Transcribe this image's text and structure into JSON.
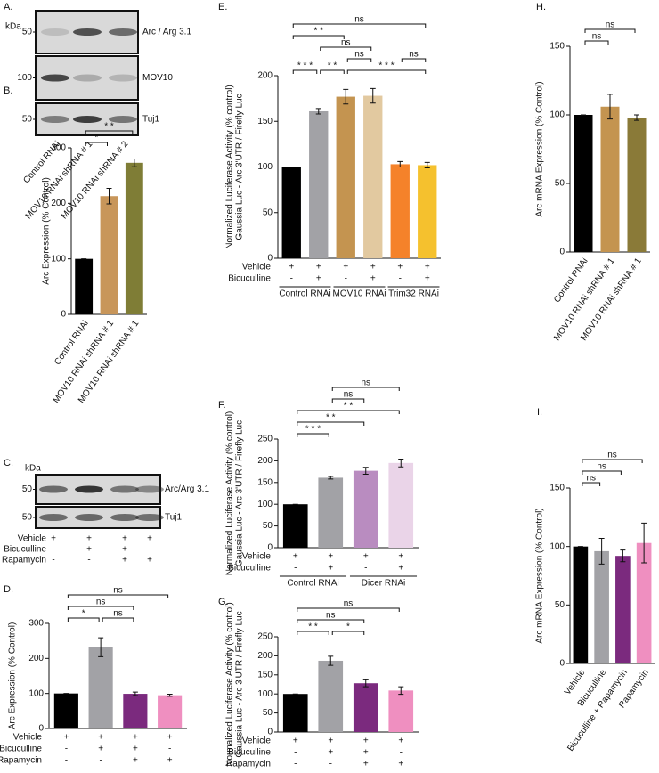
{
  "blots": [
    {
      "label": "A.",
      "unit": "kDa",
      "rows": [
        {
          "name": "Arc / Arg 3.1",
          "marker": 50
        },
        {
          "name": "MOV10",
          "marker": 100
        },
        {
          "name": "Tuj1",
          "marker": 50
        }
      ],
      "lanes": [
        "Control RNAi",
        "MOV10 RNAi shRNA # 1",
        "MOV10 RNAi shRNA # 2"
      ]
    },
    {
      "label": "C.",
      "unit": "kDa",
      "rows": [
        {
          "name": "Arc/Arg 3.1",
          "marker": 50
        },
        {
          "name": "Tuj1",
          "marker": 50
        }
      ],
      "treatments": [
        {
          "name": "Vehicle",
          "values": [
            "+",
            "+",
            "+",
            "+"
          ]
        },
        {
          "name": "Bicuculline",
          "values": [
            "-",
            "+",
            "+",
            "-"
          ]
        },
        {
          "name": "Rapamycin",
          "values": [
            "-",
            "-",
            "+",
            "+"
          ]
        }
      ]
    }
  ],
  "chart_data": [
    {
      "type": "bar",
      "label": "B.",
      "ylabel": "Arc Expression  (% Control)",
      "categories": [
        "Control RNAi",
        "MOV10 RNAi shRNA # 1",
        "MOV10 RNAi shRNA # 1"
      ],
      "values": [
        100,
        213,
        273
      ],
      "errors": [
        0,
        14,
        7
      ],
      "colors": [
        "#000000",
        "#c8965a",
        "#7f7d36"
      ],
      "ylim": [
        0,
        300
      ],
      "yticks": [
        0,
        100,
        200,
        300
      ],
      "comparisons": [
        {
          "groups": [
            0,
            2
          ],
          "label": "* *"
        },
        {
          "groups": [
            0,
            1
          ],
          "label": "*"
        }
      ]
    },
    {
      "type": "bar",
      "label": "D.",
      "ylabel": "Arc Expression (% Control)",
      "values": [
        100,
        232,
        99,
        95
      ],
      "errors": [
        0,
        27,
        5,
        3
      ],
      "colors": [
        "#000000",
        "#a2a2a6",
        "#7b2a7e",
        "#ef8fc0"
      ],
      "ylim": [
        0,
        300
      ],
      "yticks": [
        0,
        100,
        200,
        300
      ],
      "treatments": [
        {
          "name": "Vehicle",
          "values": [
            "+",
            "+",
            "+",
            "+"
          ]
        },
        {
          "name": "Bicuculline",
          "values": [
            "-",
            "+",
            "+",
            "-"
          ]
        },
        {
          "name": "Rapamycin",
          "values": [
            "-",
            "-",
            "+",
            "+"
          ]
        }
      ],
      "comparisons": [
        {
          "groups": [
            0,
            3
          ],
          "label": "ns"
        },
        {
          "groups": [
            0,
            2
          ],
          "label": "ns"
        },
        {
          "groups": [
            0,
            1
          ],
          "label": "*"
        },
        {
          "groups": [
            1,
            2
          ],
          "label": "ns"
        }
      ]
    },
    {
      "type": "bar",
      "label": "E.",
      "ylabel": [
        "Normalized Luciferase Activity (% control)",
        "Gaussia Luc - Arc 3'UTR / Firefly Luc"
      ],
      "values": [
        100,
        161,
        177,
        178,
        103,
        102
      ],
      "errors": [
        0,
        3,
        8,
        8,
        3,
        3
      ],
      "colors": [
        "#000000",
        "#a2a2a6",
        "#c49450",
        "#e2c9a0",
        "#f5822a",
        "#f5c12e"
      ],
      "ylim": [
        0,
        200
      ],
      "yticks": [
        0,
        50,
        100,
        150,
        200
      ],
      "treatments": [
        {
          "name": "Vehicle",
          "values": [
            "+",
            "+",
            "+",
            "+",
            "+",
            "+"
          ]
        },
        {
          "name": "Bicuculline",
          "values": [
            "-",
            "+",
            "-",
            "+",
            "-",
            "+"
          ]
        }
      ],
      "groups": [
        {
          "name": "Control RNAi",
          "span": [
            0,
            1
          ]
        },
        {
          "name": "MOV10 RNAi",
          "span": [
            2,
            3
          ]
        },
        {
          "name": "Trim32 RNAi",
          "span": [
            4,
            5
          ]
        }
      ],
      "comparisons": [
        {
          "groups": [
            0,
            5
          ],
          "label": "ns"
        },
        {
          "groups": [
            0,
            2
          ],
          "label": "* *"
        },
        {
          "groups": [
            1,
            3
          ],
          "label": "ns"
        },
        {
          "groups": [
            1,
            2
          ],
          "label": "* *"
        },
        {
          "groups": [
            2,
            3
          ],
          "label": "ns"
        },
        {
          "groups": [
            4,
            5
          ],
          "label": "ns"
        },
        {
          "groups": [
            0,
            1
          ],
          "label": "* * *"
        },
        {
          "groups": [
            2,
            5
          ],
          "label": "* * *"
        }
      ]
    },
    {
      "type": "bar",
      "label": "F.",
      "ylabel": [
        "Normalized Luciferase Activity (% control)",
        "Gaussia Luc - Arc 3'UTR / Firefly Luc"
      ],
      "values": [
        100,
        161,
        177,
        195
      ],
      "errors": [
        0,
        3,
        8,
        9
      ],
      "colors": [
        "#000000",
        "#a2a2a6",
        "#b98cc0",
        "#ead4e8"
      ],
      "ylim": [
        0,
        250
      ],
      "yticks": [
        0,
        50,
        100,
        150,
        200,
        250
      ],
      "treatments": [
        {
          "name": "Vehicle",
          "values": [
            "+",
            "+",
            "+",
            "+"
          ]
        },
        {
          "name": "Bicuculline",
          "values": [
            "-",
            "+",
            "-",
            "+"
          ]
        }
      ],
      "groups": [
        {
          "name": "Control RNAi",
          "span": [
            0,
            1
          ]
        },
        {
          "name": "Dicer RNAi",
          "span": [
            2,
            3
          ]
        }
      ],
      "comparisons": [
        {
          "groups": [
            1,
            3
          ],
          "label": "ns"
        },
        {
          "groups": [
            1,
            2
          ],
          "label": "ns"
        },
        {
          "groups": [
            0,
            3
          ],
          "label": "* *"
        },
        {
          "groups": [
            0,
            2
          ],
          "label": "* *"
        },
        {
          "groups": [
            0,
            1
          ],
          "label": "* * *"
        }
      ]
    },
    {
      "type": "bar",
      "label": "G.",
      "ylabel": [
        "Normalized Luciferase Activity (% control)",
        "Gaussia Luc - Arc 3'UTR / Firefly Luc"
      ],
      "values": [
        100,
        187,
        128,
        109
      ],
      "errors": [
        0,
        12,
        9,
        10
      ],
      "colors": [
        "#000000",
        "#a2a2a6",
        "#7b2a7e",
        "#ef8fc0"
      ],
      "ylim": [
        0,
        250
      ],
      "yticks": [
        0,
        50,
        100,
        150,
        200,
        250
      ],
      "treatments": [
        {
          "name": "Vehicle",
          "values": [
            "+",
            "+",
            "+",
            "+"
          ]
        },
        {
          "name": "Bicuculline",
          "values": [
            "-",
            "+",
            "+",
            "-"
          ]
        },
        {
          "name": "Rapamycin",
          "values": [
            "-",
            "-",
            "+",
            "+"
          ]
        }
      ],
      "comparisons": [
        {
          "groups": [
            0,
            3
          ],
          "label": "ns"
        },
        {
          "groups": [
            0,
            2
          ],
          "label": "ns"
        },
        {
          "groups": [
            0,
            1
          ],
          "label": "* *"
        },
        {
          "groups": [
            1,
            2
          ],
          "label": "*"
        }
      ]
    },
    {
      "type": "bar",
      "label": "H.",
      "ylabel": "Arc mRNA Expression  (% Control)",
      "categories": [
        "Control RNAi",
        "MOV10 RNAi shRNA # 1",
        "MOV10 RNAi shRNA # 1"
      ],
      "values": [
        100,
        106,
        98
      ],
      "errors": [
        0,
        9,
        2
      ],
      "colors": [
        "#000000",
        "#c49450",
        "#8a7a38"
      ],
      "ylim": [
        0,
        150
      ],
      "yticks": [
        0,
        50,
        100,
        150
      ],
      "comparisons": [
        {
          "groups": [
            0,
            2
          ],
          "label": "ns"
        },
        {
          "groups": [
            0,
            1
          ],
          "label": "ns"
        }
      ]
    },
    {
      "type": "bar",
      "label": "I.",
      "ylabel": "Arc mRNA Expression  (% Control)",
      "categories": [
        "Vehicle",
        "Bicuculline",
        "Bicuculline + Rapamycin",
        "Rapamycin"
      ],
      "values": [
        100,
        96,
        92,
        103
      ],
      "errors": [
        0,
        11,
        5,
        17
      ],
      "colors": [
        "#000000",
        "#a2a2a6",
        "#7b2a7e",
        "#ef8fc0"
      ],
      "ylim": [
        0,
        150
      ],
      "yticks": [
        0,
        50,
        100,
        150
      ],
      "comparisons": [
        {
          "groups": [
            0,
            3
          ],
          "label": "ns"
        },
        {
          "groups": [
            0,
            2
          ],
          "label": "ns"
        },
        {
          "groups": [
            0,
            1
          ],
          "label": "ns"
        }
      ]
    }
  ]
}
